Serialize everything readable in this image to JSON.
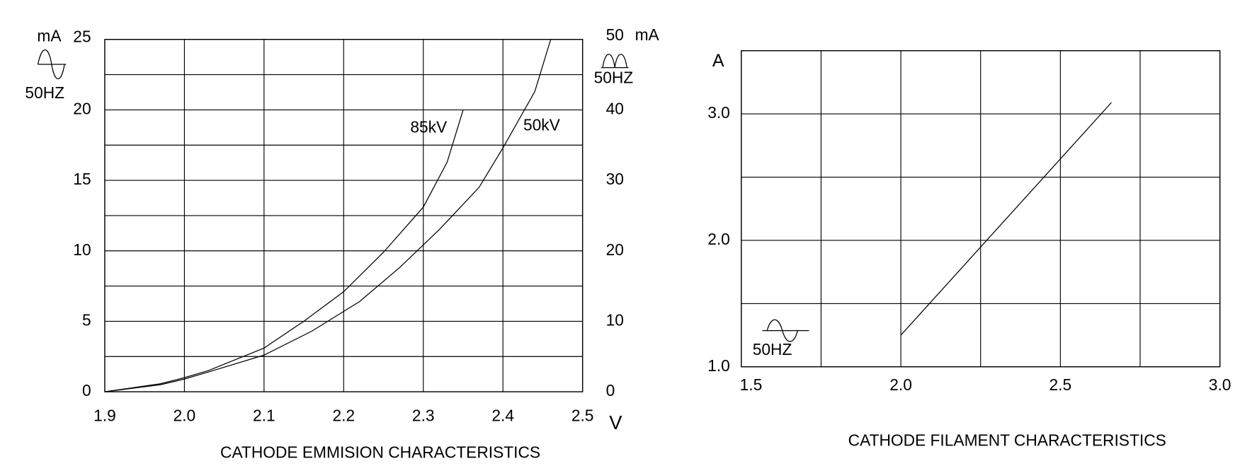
{
  "chart_data": [
    {
      "type": "line",
      "title": "CATHODE EMMISION CHARACTERISTICS",
      "x_unit": "V",
      "y_unit": "mA",
      "y2_unit": "mA",
      "left_symbol_label": "50HZ",
      "right_symbol_label": "50HZ",
      "xlim": [
        1.9,
        2.5
      ],
      "xticks": [
        1.9,
        {
          "value": 2,
          "label": "2.0"
        },
        2.1,
        2.2,
        2.3,
        2.4,
        2.5
      ],
      "xgrid_step": 0.1,
      "ylim": [
        0,
        25
      ],
      "yticks": [
        0,
        5,
        10,
        15,
        20,
        25
      ],
      "ygrid_step": 2.5,
      "y2lim": [
        0,
        50
      ],
      "y2ticks": [
        0,
        10,
        20,
        30,
        40,
        50
      ],
      "grid": true,
      "series": [
        {
          "name": "85kV",
          "color": "#000000",
          "x": [
            1.9,
            1.97,
            2.0,
            2.03,
            2.1,
            2.15,
            2.2,
            2.25,
            2.3,
            2.33,
            2.35
          ],
          "values": [
            0,
            0.57,
            1.0,
            1.5,
            3.1,
            5.0,
            7.1,
            9.9,
            13.1,
            16.3,
            20
          ]
        },
        {
          "name": "50kV",
          "color": "#000000",
          "x": [
            1.9,
            1.97,
            2.0,
            2.03,
            2.1,
            2.16,
            2.22,
            2.27,
            2.32,
            2.37,
            2.4,
            2.44,
            2.46
          ],
          "values": [
            0,
            0.5,
            0.9,
            1.4,
            2.6,
            4.3,
            6.4,
            8.8,
            11.5,
            14.5,
            17.3,
            21.3,
            25
          ]
        }
      ]
    },
    {
      "type": "line",
      "title": "CATHODE FILAMENT CHARACTERISTICS",
      "y_unit": "A",
      "symbol_label": "50HZ",
      "xlim": [
        1.5,
        3.0
      ],
      "xticks": [
        1.5,
        {
          "value": 2,
          "label": "2.0"
        },
        2.5,
        {
          "value": 3,
          "label": "3.0"
        }
      ],
      "xgrid_step": 0.25,
      "ylim": [
        1.0,
        3.5
      ],
      "yticks": [
        {
          "value": 1,
          "label": "1.0"
        },
        {
          "value": 2,
          "label": "2.0"
        },
        {
          "value": 3,
          "label": "3.0"
        }
      ],
      "ygrid_step": 0.5,
      "grid": true,
      "series": [
        {
          "color": "#000000",
          "x": [
            2.0,
            2.66
          ],
          "values": [
            1.25,
            3.09
          ]
        }
      ]
    }
  ]
}
